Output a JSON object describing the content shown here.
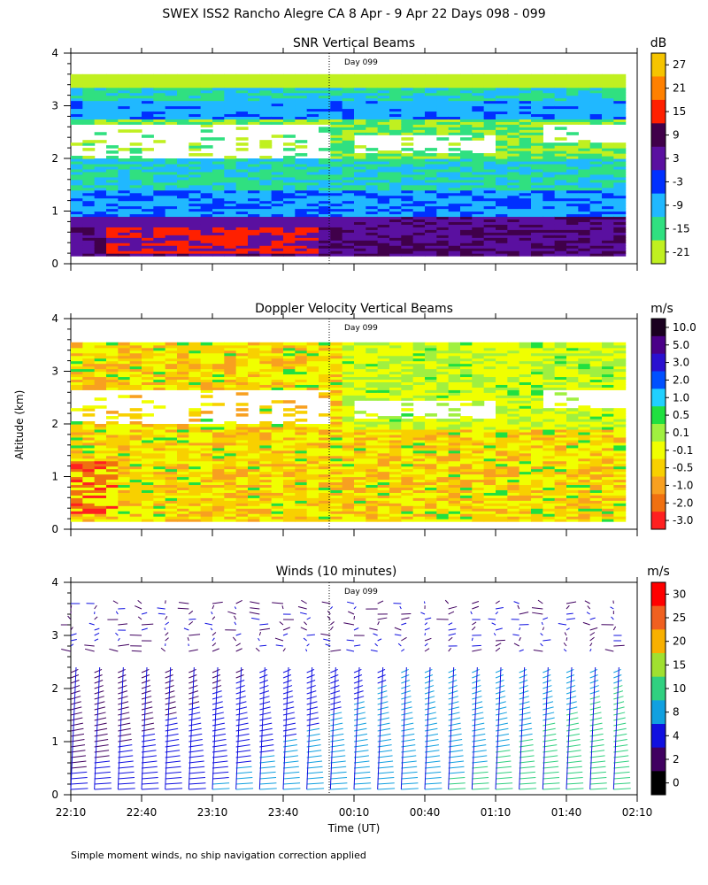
{
  "title": "SWEX ISS2 Rancho Alegre CA   8 Apr -  9 Apr 22 Days 098 - 099",
  "footnote": "Simple moment winds, no ship navigation correction applied",
  "shared": {
    "ylabel": "Altitude (km)",
    "xlabel": "Time (UT)",
    "day_marker": "Day 099",
    "yticks": [
      "0",
      "1",
      "2",
      "3",
      "4"
    ],
    "xticks": [
      "22:10",
      "22:40",
      "23:10",
      "23:40",
      "00:10",
      "00:40",
      "01:10",
      "01:40",
      "02:10"
    ]
  },
  "chart_data": [
    {
      "type": "heatmap",
      "title": "SNR Vertical Beams",
      "xlabel": "Time (UT)",
      "ylabel": "Altitude (km)",
      "x_range": [
        "22:10",
        "02:10"
      ],
      "ylim": [
        0,
        4
      ],
      "colorbar": {
        "unit": "dB",
        "levels": [
          "27",
          "21",
          "15",
          "9",
          "3",
          "-3",
          "-9",
          "-15",
          "-21"
        ],
        "colors": [
          "#f5c400",
          "#ff8000",
          "#ff2000",
          "#40004a",
          "#5a10a0",
          "#0030ff",
          "#20b8ff",
          "#30e080",
          "#c0f020"
        ]
      },
      "features": {
        "data_top_km": 3.55,
        "data_bottom_km": 0.15,
        "blank_gaps": [
          {
            "from": "22:10",
            "to": "00:00",
            "km_from": 2.0,
            "km_to": 2.6
          },
          {
            "from": "00:10",
            "to": "01:10",
            "km_from": 2.1,
            "km_to": 2.4
          },
          {
            "from": "01:30",
            "to": "02:10",
            "km_from": 2.3,
            "km_to": 2.6
          }
        ],
        "max_core": {
          "from": "22:25",
          "to": "23:55",
          "km_from": 0.2,
          "km_to": 0.7,
          "dB": 15
        }
      }
    },
    {
      "type": "heatmap",
      "title": "Doppler Velocity Vertical Beams",
      "xlabel": "Time (UT)",
      "ylabel": "Altitude (km)",
      "x_range": [
        "22:10",
        "02:10"
      ],
      "ylim": [
        0,
        4
      ],
      "colorbar": {
        "unit": "m/s",
        "levels": [
          "10.0",
          "5.0",
          "3.0",
          "2.0",
          "1.0",
          "0.5",
          "0.1",
          "-0.1",
          "-0.5",
          "-1.0",
          "-2.0",
          "-3.0"
        ],
        "colors": [
          "#1a0020",
          "#4a0088",
          "#2a10d0",
          "#0050ff",
          "#20d0ff",
          "#20e040",
          "#a0f040",
          "#f0ff00",
          "#f8d000",
          "#f8a020",
          "#f07010",
          "#ff2020"
        ]
      },
      "features": {
        "data_top_km": 3.5,
        "data_bottom_km": 0.15,
        "dominant_range_m_s": [
          -1.0,
          0.1
        ],
        "min_core": {
          "from": "22:10",
          "to": "22:30",
          "km_from": 0.3,
          "km_to": 1.3,
          "m_s": -3.0
        }
      }
    },
    {
      "type": "scatter",
      "title": "Winds (10 minutes)",
      "xlabel": "Time (UT)",
      "ylabel": "Altitude (km)",
      "x_range": [
        "22:10",
        "02:10"
      ],
      "ylim": [
        0,
        4
      ],
      "colorbar": {
        "unit": "m/s",
        "levels": [
          "30",
          "25",
          "20",
          "15",
          "10",
          "8",
          "4",
          "2",
          "0"
        ],
        "colors": [
          "#ff0000",
          "#f06020",
          "#f8b000",
          "#a0e030",
          "#30d080",
          "#10a0e0",
          "#1010e0",
          "#400060",
          "#000000"
        ]
      },
      "profile_interval_min": 10,
      "profile_count": 24,
      "lower_layer_km": [
        0.1,
        2.4
      ],
      "upper_layer_km": [
        2.7,
        3.7
      ],
      "speed_trend": "lower-layer speeds increase from about 4 m/s near 22:10 to about 10-15 m/s after 01:10"
    }
  ]
}
